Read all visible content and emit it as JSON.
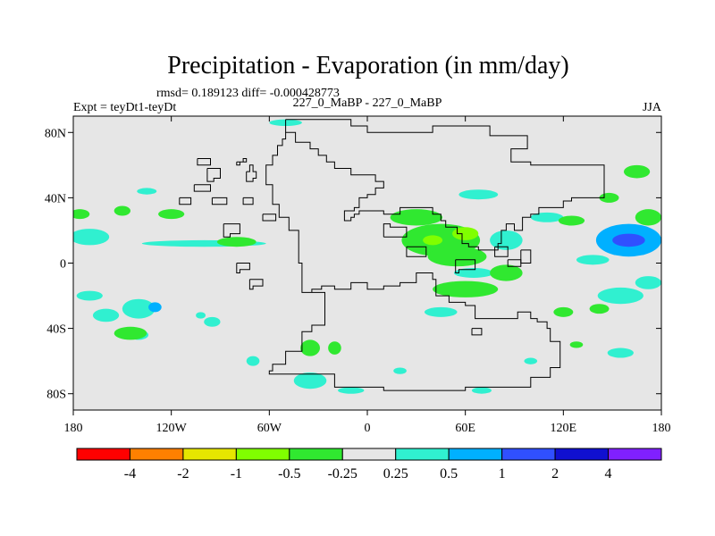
{
  "chart_data": {
    "type": "heatmap",
    "title": "Precipitation - Evaporation (in mm/day)",
    "stats_line": "rmsd= 0.189123 diff= -0.000428773",
    "left_label": "Expt = teyDt1-teyDt",
    "center_label": "227_0_MaBP - 227_0_MaBP",
    "right_label": "JJA",
    "x_ticks": [
      {
        "value": -180,
        "label": "180"
      },
      {
        "value": -120,
        "label": "120W"
      },
      {
        "value": -60,
        "label": "60W"
      },
      {
        "value": 0,
        "label": "0"
      },
      {
        "value": 60,
        "label": "60E"
      },
      {
        "value": 120,
        "label": "120E"
      },
      {
        "value": 180,
        "label": "180"
      }
    ],
    "y_ticks": [
      {
        "value": 80,
        "label": "80N"
      },
      {
        "value": 40,
        "label": "40N"
      },
      {
        "value": 0,
        "label": "0"
      },
      {
        "value": -40,
        "label": "40S"
      },
      {
        "value": -80,
        "label": "80S"
      }
    ],
    "xlim": [
      -180,
      180
    ],
    "ylim": [
      -90,
      90
    ],
    "colorbar": {
      "colors": [
        "#ff0000",
        "#ff8000",
        "#e6e600",
        "#80ff00",
        "#30e830",
        "#e6e6e6",
        "#30f0d0",
        "#00b0ff",
        "#3050ff",
        "#1010d0",
        "#8020ff"
      ],
      "labels": [
        "-4",
        "-2",
        "-1",
        "-0.5",
        "-0.25",
        "0.25",
        "0.5",
        "1",
        "2",
        "4"
      ]
    },
    "background_color": "#e6e6e6",
    "anomaly_regions": [
      {
        "lon": -170,
        "lat": 16,
        "rx": 12,
        "ry": 5,
        "level": 6
      },
      {
        "lon": -176,
        "lat": 30,
        "rx": 6,
        "ry": 3,
        "level": 4
      },
      {
        "lon": -135,
        "lat": 44,
        "rx": 6,
        "ry": 2,
        "level": 6
      },
      {
        "lon": -150,
        "lat": 32,
        "rx": 5,
        "ry": 3,
        "level": 4
      },
      {
        "lon": -120,
        "lat": 30,
        "rx": 8,
        "ry": 3,
        "level": 4
      },
      {
        "lon": -100,
        "lat": 12,
        "rx": 38,
        "ry": 2,
        "level": 6
      },
      {
        "lon": -80,
        "lat": 13,
        "rx": 12,
        "ry": 3,
        "level": 4
      },
      {
        "lon": -170,
        "lat": -20,
        "rx": 8,
        "ry": 3,
        "level": 6
      },
      {
        "lon": -160,
        "lat": -32,
        "rx": 8,
        "ry": 4,
        "level": 6
      },
      {
        "lon": -140,
        "lat": -28,
        "rx": 10,
        "ry": 6,
        "level": 6
      },
      {
        "lon": -130,
        "lat": -27,
        "rx": 4,
        "ry": 3,
        "level": 7
      },
      {
        "lon": -140,
        "lat": -44,
        "rx": 6,
        "ry": 3,
        "level": 6
      },
      {
        "lon": -145,
        "lat": -43,
        "rx": 10,
        "ry": 4,
        "level": 4
      },
      {
        "lon": -95,
        "lat": -36,
        "rx": 5,
        "ry": 3,
        "level": 6
      },
      {
        "lon": -102,
        "lat": -32,
        "rx": 3,
        "ry": 2,
        "level": 6
      },
      {
        "lon": -50,
        "lat": 86,
        "rx": 10,
        "ry": 2,
        "level": 6
      },
      {
        "lon": 30,
        "lat": 28,
        "rx": 16,
        "ry": 5,
        "level": 4
      },
      {
        "lon": 45,
        "lat": 14,
        "rx": 24,
        "ry": 10,
        "level": 4
      },
      {
        "lon": 40,
        "lat": 14,
        "rx": 6,
        "ry": 3,
        "level": 3
      },
      {
        "lon": 60,
        "lat": 18,
        "rx": 8,
        "ry": 4,
        "level": 3
      },
      {
        "lon": 55,
        "lat": 4,
        "rx": 18,
        "ry": 6,
        "level": 4
      },
      {
        "lon": 85,
        "lat": 14,
        "rx": 10,
        "ry": 6,
        "level": 6
      },
      {
        "lon": 60,
        "lat": -16,
        "rx": 20,
        "ry": 5,
        "level": 4
      },
      {
        "lon": 65,
        "lat": -6,
        "rx": 12,
        "ry": 3,
        "level": 6
      },
      {
        "lon": 85,
        "lat": -6,
        "rx": 10,
        "ry": 5,
        "level": 4
      },
      {
        "lon": 45,
        "lat": -30,
        "rx": 10,
        "ry": 3,
        "level": 6
      },
      {
        "lon": 68,
        "lat": 42,
        "rx": 12,
        "ry": 3,
        "level": 6
      },
      {
        "lon": 110,
        "lat": 28,
        "rx": 10,
        "ry": 3,
        "level": 6
      },
      {
        "lon": 125,
        "lat": 26,
        "rx": 8,
        "ry": 3,
        "level": 4
      },
      {
        "lon": 160,
        "lat": 14,
        "rx": 20,
        "ry": 10,
        "level": 7
      },
      {
        "lon": 160,
        "lat": 14,
        "rx": 10,
        "ry": 4,
        "level": 8
      },
      {
        "lon": 138,
        "lat": 2,
        "rx": 10,
        "ry": 3,
        "level": 6
      },
      {
        "lon": 172,
        "lat": 28,
        "rx": 8,
        "ry": 5,
        "level": 4
      },
      {
        "lon": 165,
        "lat": 56,
        "rx": 8,
        "ry": 4,
        "level": 4
      },
      {
        "lon": 148,
        "lat": 40,
        "rx": 6,
        "ry": 3,
        "level": 4
      },
      {
        "lon": 155,
        "lat": -20,
        "rx": 14,
        "ry": 5,
        "level": 6
      },
      {
        "lon": 172,
        "lat": -12,
        "rx": 8,
        "ry": 4,
        "level": 6
      },
      {
        "lon": 142,
        "lat": -28,
        "rx": 6,
        "ry": 3,
        "level": 4
      },
      {
        "lon": 120,
        "lat": -30,
        "rx": 6,
        "ry": 3,
        "level": 4
      },
      {
        "lon": 155,
        "lat": -55,
        "rx": 8,
        "ry": 3,
        "level": 6
      },
      {
        "lon": 128,
        "lat": -50,
        "rx": 4,
        "ry": 2,
        "level": 4
      },
      {
        "lon": -35,
        "lat": -52,
        "rx": 6,
        "ry": 5,
        "level": 4
      },
      {
        "lon": -20,
        "lat": -52,
        "rx": 4,
        "ry": 4,
        "level": 4
      },
      {
        "lon": -70,
        "lat": -60,
        "rx": 4,
        "ry": 3,
        "level": 6
      },
      {
        "lon": -35,
        "lat": -72,
        "rx": 10,
        "ry": 5,
        "level": 6
      },
      {
        "lon": -10,
        "lat": -78,
        "rx": 8,
        "ry": 2,
        "level": 6
      },
      {
        "lon": 70,
        "lat": -78,
        "rx": 6,
        "ry": 2,
        "level": 6
      },
      {
        "lon": 20,
        "lat": -66,
        "rx": 4,
        "ry": 2,
        "level": 6
      },
      {
        "lon": 100,
        "lat": -60,
        "rx": 4,
        "ry": 2,
        "level": 6
      }
    ],
    "coastlines": [
      [
        [
          -50,
          88
        ],
        [
          -10,
          88
        ],
        [
          -10,
          84
        ],
        [
          0,
          84
        ],
        [
          0,
          80
        ],
        [
          40,
          80
        ],
        [
          40,
          84
        ],
        [
          75,
          84
        ],
        [
          75,
          78
        ],
        [
          98,
          78
        ],
        [
          98,
          70
        ],
        [
          92,
          70
        ],
        [
          88,
          62
        ],
        [
          100,
          62
        ],
        [
          100,
          60
        ],
        [
          145,
          60
        ],
        [
          145,
          40
        ],
        [
          135,
          40
        ],
        [
          125,
          38
        ],
        [
          120,
          34
        ],
        [
          105,
          30
        ],
        [
          100,
          28
        ],
        [
          95,
          20
        ],
        [
          90,
          24
        ],
        [
          85,
          20
        ],
        [
          82,
          12
        ],
        [
          80,
          8
        ],
        [
          72,
          8
        ],
        [
          68,
          10
        ],
        [
          62,
          12
        ],
        [
          58,
          18
        ],
        [
          55,
          22
        ],
        [
          48,
          26
        ],
        [
          45,
          30
        ],
        [
          40,
          34
        ],
        [
          30,
          34
        ],
        [
          20,
          30
        ],
        [
          10,
          32
        ],
        [
          0,
          32
        ],
        [
          -5,
          30
        ],
        [
          -8,
          28
        ],
        [
          -10,
          26
        ],
        [
          -14,
          26
        ],
        [
          -14,
          32
        ],
        [
          -8,
          34
        ],
        [
          -5,
          40
        ],
        [
          0,
          42
        ],
        [
          5,
          46
        ],
        [
          10,
          50
        ],
        [
          5,
          54
        ],
        [
          -10,
          58
        ],
        [
          -20,
          62
        ],
        [
          -25,
          66
        ],
        [
          -30,
          70
        ],
        [
          -35,
          74
        ],
        [
          -44,
          80
        ],
        [
          -50,
          88
        ]
      ],
      [
        [
          -34,
          -18
        ],
        [
          -26,
          -18
        ],
        [
          -26,
          -38
        ],
        [
          -34,
          -42
        ],
        [
          -40,
          -54
        ],
        [
          -50,
          -62
        ],
        [
          -58,
          -66
        ],
        [
          -60,
          -68
        ],
        [
          -20,
          -76
        ],
        [
          10,
          -78
        ],
        [
          60,
          -76
        ],
        [
          100,
          -70
        ],
        [
          112,
          -64
        ],
        [
          118,
          -54
        ],
        [
          118,
          -48
        ],
        [
          112,
          -46
        ],
        [
          112,
          -40
        ],
        [
          110,
          -36
        ],
        [
          104,
          -34
        ],
        [
          100,
          -30
        ],
        [
          92,
          -34
        ],
        [
          72,
          -34
        ],
        [
          66,
          -26
        ],
        [
          60,
          -24
        ],
        [
          50,
          -20
        ],
        [
          42,
          -10
        ],
        [
          40,
          -6
        ],
        [
          30,
          -12
        ],
        [
          20,
          -14
        ],
        [
          10,
          -16
        ],
        [
          0,
          -12
        ],
        [
          -10,
          -16
        ],
        [
          -20,
          -14
        ],
        [
          -28,
          -16
        ],
        [
          -34,
          -18
        ]
      ],
      [
        [
          -34,
          -18
        ],
        [
          -40,
          0
        ],
        [
          -42,
          20
        ],
        [
          -48,
          28
        ],
        [
          -54,
          36
        ],
        [
          -58,
          48
        ],
        [
          -62,
          60
        ],
        [
          -58,
          66
        ],
        [
          -55,
          72
        ],
        [
          -52,
          76
        ],
        [
          -50,
          80
        ]
      ],
      [
        [
          -74,
          56
        ],
        [
          -72,
          60
        ],
        [
          -70,
          56
        ],
        [
          -68,
          52
        ],
        [
          -70,
          50
        ],
        [
          -74,
          56
        ]
      ],
      [
        [
          -80,
          62
        ],
        [
          -76,
          64
        ],
        [
          -74,
          62
        ],
        [
          -78,
          60
        ],
        [
          -80,
          62
        ]
      ],
      [
        [
          -98,
          58
        ],
        [
          -90,
          58
        ],
        [
          -90,
          52
        ],
        [
          -94,
          50
        ],
        [
          -98,
          54
        ],
        [
          -98,
          58
        ]
      ],
      [
        [
          -104,
          64
        ],
        [
          -98,
          64
        ],
        [
          -96,
          60
        ],
        [
          -102,
          60
        ],
        [
          -104,
          64
        ]
      ],
      [
        [
          -106,
          48
        ],
        [
          -98,
          48
        ],
        [
          -96,
          44
        ],
        [
          -104,
          44
        ],
        [
          -106,
          48
        ]
      ],
      [
        [
          -115,
          40
        ],
        [
          -110,
          40
        ],
        [
          -108,
          36
        ],
        [
          -114,
          36
        ],
        [
          -115,
          40
        ]
      ],
      [
        [
          -95,
          40
        ],
        [
          -88,
          40
        ],
        [
          -86,
          36
        ],
        [
          -94,
          36
        ],
        [
          -95,
          40
        ]
      ],
      [
        [
          -76,
          40
        ],
        [
          -72,
          40
        ],
        [
          -70,
          36
        ],
        [
          -74,
          36
        ],
        [
          -76,
          40
        ]
      ],
      [
        [
          -88,
          24
        ],
        [
          -80,
          24
        ],
        [
          -78,
          18
        ],
        [
          -84,
          16
        ],
        [
          -88,
          20
        ],
        [
          -88,
          24
        ]
      ],
      [
        [
          -80,
          0
        ],
        [
          -74,
          0
        ],
        [
          -72,
          -4
        ],
        [
          -78,
          -6
        ],
        [
          -80,
          0
        ]
      ],
      [
        [
          -64,
          30
        ],
        [
          -58,
          30
        ],
        [
          -56,
          26
        ],
        [
          -62,
          26
        ],
        [
          -64,
          30
        ]
      ],
      [
        [
          -72,
          -10
        ],
        [
          -66,
          -10
        ],
        [
          -64,
          -14
        ],
        [
          -70,
          -16
        ],
        [
          -72,
          -10
        ]
      ],
      [
        [
          10,
          16
        ],
        [
          20,
          16
        ],
        [
          24,
          22
        ],
        [
          14,
          24
        ],
        [
          10,
          16
        ]
      ],
      [
        [
          24,
          10
        ],
        [
          36,
          10
        ],
        [
          36,
          4
        ],
        [
          28,
          4
        ],
        [
          24,
          10
        ]
      ],
      [
        [
          54,
          2
        ],
        [
          64,
          2
        ],
        [
          66,
          -4
        ],
        [
          56,
          -6
        ],
        [
          54,
          2
        ]
      ],
      [
        [
          78,
          10
        ],
        [
          84,
          10
        ],
        [
          86,
          4
        ],
        [
          78,
          4
        ],
        [
          78,
          10
        ]
      ],
      [
        [
          86,
          2
        ],
        [
          94,
          2
        ],
        [
          94,
          -2
        ],
        [
          88,
          -2
        ],
        [
          86,
          2
        ]
      ],
      [
        [
          94,
          8
        ],
        [
          100,
          8
        ],
        [
          100,
          0
        ],
        [
          96,
          0
        ],
        [
          94,
          8
        ]
      ],
      [
        [
          64,
          -40
        ],
        [
          70,
          -40
        ],
        [
          70,
          -44
        ],
        [
          64,
          -44
        ],
        [
          64,
          -40
        ]
      ]
    ]
  }
}
